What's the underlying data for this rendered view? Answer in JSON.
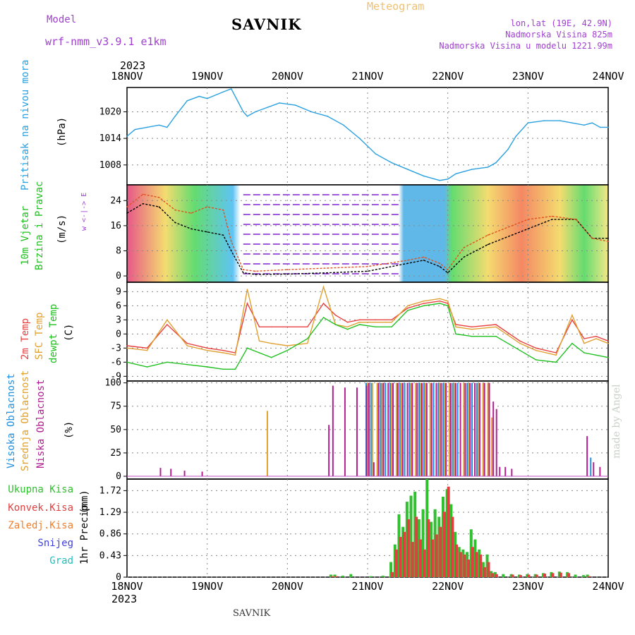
{
  "header": {
    "model_label": "Model",
    "model_name": "wrf-nmm_v3.9.1 e1km",
    "title": "SAVNIK",
    "subtitle": "Meteogram",
    "lonlat": "lon,lat (19E, 42.9N)",
    "altitude": "Nadmorska Visina 825m",
    "model_altitude": "Nadmorska Visina u modelu 1221.99m"
  },
  "footer": {
    "station": "SAVNIK",
    "credit": "made by Angel"
  },
  "colors": {
    "pressure": "#2aa0e0",
    "temp2m": "#e84040",
    "sfc_temp": "#e0a030",
    "dewpt": "#20c020",
    "high_cloud": "#2090e0",
    "mid_cloud": "#e0a030",
    "low_cloud": "#b02090",
    "total_precip": "#30c030",
    "conv_precip": "#e04040",
    "frozen_precip": "#f08030",
    "snow": "#4040e0",
    "hail": "#20c0c0",
    "wind_purple": "#8020d0"
  },
  "axis": {
    "year": "2023",
    "dates": [
      "18NOV",
      "19NOV",
      "20NOV",
      "21NOV",
      "22NOV",
      "23NOV",
      "24NOV"
    ]
  },
  "chart_data": [
    {
      "type": "line",
      "panel": "pressure",
      "ylabel": "Pritisak na nivou mora",
      "unit": "(hPa)",
      "yticks": [
        1008,
        1014,
        1020
      ],
      "ylim": [
        1003.5,
        1025.5
      ],
      "x_start": "18NOV",
      "x_end": "24NOV",
      "x": [
        0,
        0.1,
        0.25,
        0.4,
        0.5,
        0.6,
        0.75,
        0.9,
        1.0,
        1.2,
        1.3,
        1.45,
        1.5,
        1.6,
        1.75,
        1.9,
        2.1,
        2.3,
        2.5,
        2.7,
        2.9,
        3.1,
        3.3,
        3.5,
        3.7,
        3.9,
        4.0,
        4.1,
        4.3,
        4.5,
        4.6,
        4.75,
        4.85,
        5.0,
        5.2,
        5.4,
        5.55,
        5.7,
        5.8,
        5.9,
        6.0
      ],
      "series": [
        {
          "values": [
            1014.5,
            1016,
            1016.5,
            1017,
            1016.5,
            1019,
            1022.5,
            1023.5,
            1023,
            1024.5,
            1025.2,
            1020,
            1019,
            1020,
            1021,
            1022,
            1021.5,
            1020,
            1019,
            1017,
            1014,
            1010.5,
            1008.5,
            1007,
            1005.5,
            1004.5,
            1004.8,
            1006,
            1007,
            1007.5,
            1008.5,
            1011.5,
            1014.5,
            1017.5,
            1018,
            1018,
            1017.5,
            1017,
            1017.5,
            1016.5,
            1016.5
          ]
        }
      ]
    },
    {
      "type": "line",
      "panel": "wind",
      "ylabel": [
        "10m Vjetar",
        "Brzina i Pravac"
      ],
      "unit": "(m/s)",
      "compass": "w <-|-> E",
      "yticks": [
        0,
        8,
        16,
        24
      ],
      "ylim": [
        -2,
        29
      ],
      "x_start": "18NOV",
      "x_end": "24NOV",
      "x": [
        0,
        0.2,
        0.4,
        0.6,
        0.8,
        1.0,
        1.2,
        1.3,
        1.45,
        1.6,
        2.0,
        2.5,
        3.0,
        3.5,
        3.7,
        3.9,
        4.0,
        4.2,
        4.5,
        4.8,
        5.0,
        5.3,
        5.6,
        5.8,
        6.0
      ],
      "series": [
        {
          "name": "speed",
          "values": [
            20,
            23,
            22,
            17,
            15,
            14,
            13,
            8,
            1,
            0.5,
            0.6,
            1.0,
            1.5,
            4,
            5,
            3,
            1,
            6,
            10,
            13,
            15,
            18,
            18,
            12,
            12
          ]
        },
        {
          "name": "gust",
          "values": [
            22,
            26,
            25,
            21,
            20,
            22,
            21,
            11,
            2,
            1.5,
            2,
            2.5,
            3,
            5,
            6,
            4,
            2,
            9,
            13,
            16,
            18,
            19,
            18,
            12,
            11
          ]
        }
      ]
    },
    {
      "type": "line",
      "panel": "temperature",
      "ylabel": [
        "2m Temp",
        "SFC Temp",
        "dewpt Temp"
      ],
      "unit": "(C)",
      "yticks": [
        -9,
        -6,
        -3,
        0,
        3,
        6,
        9
      ],
      "ylim": [
        -10,
        11
      ],
      "x_start": "18NOV",
      "x_end": "24NOV",
      "x": [
        0,
        0.25,
        0.5,
        0.75,
        1.0,
        1.2,
        1.35,
        1.5,
        1.65,
        1.8,
        2.0,
        2.25,
        2.45,
        2.6,
        2.75,
        2.9,
        3.1,
        3.3,
        3.5,
        3.7,
        3.9,
        4.0,
        4.1,
        4.3,
        4.6,
        4.9,
        5.1,
        5.35,
        5.55,
        5.7,
        5.85,
        6.0
      ],
      "series": [
        {
          "name": "2m Temp",
          "values": [
            -2.5,
            -3,
            2,
            -2,
            -3,
            -3.5,
            -4,
            6.5,
            1.5,
            1.5,
            1.5,
            1.5,
            6.5,
            4,
            2.5,
            3,
            3,
            3,
            5.5,
            6.5,
            7,
            6.5,
            2,
            1.5,
            2,
            -1.5,
            -3,
            -4,
            3,
            -1,
            -0.5,
            -1.5
          ]
        },
        {
          "name": "SFC Temp",
          "values": [
            -3,
            -3.5,
            3,
            -2.5,
            -3.5,
            -4,
            -4.5,
            9.5,
            -1.5,
            -2,
            -2.5,
            -2,
            10,
            2,
            1.5,
            2.5,
            2.5,
            2.5,
            6,
            7,
            7.5,
            7,
            1.5,
            1,
            1.5,
            -2,
            -3.5,
            -4.5,
            4,
            -2,
            -1,
            -2
          ]
        },
        {
          "name": "dewpt Temp",
          "values": [
            -6,
            -7,
            -6,
            -6.5,
            -7,
            -7.5,
            -7.5,
            -3,
            -4,
            -5,
            -3.5,
            -1,
            3.5,
            2,
            1,
            2,
            1.5,
            1.5,
            5,
            6,
            6.5,
            6,
            0,
            -0.5,
            -0.5,
            -3.5,
            -5.5,
            -6,
            -2,
            -4,
            -4.5,
            -5
          ]
        }
      ]
    },
    {
      "type": "bar",
      "panel": "cloud",
      "ylabel": [
        "Visoka Oblacnost",
        "Srednja Oblacnost",
        "Niska Oblacnost"
      ],
      "unit": "(%)",
      "yticks": [
        0,
        25,
        50,
        75,
        100
      ],
      "ylim": [
        -3,
        102
      ],
      "x_start": "18NOV",
      "x_end": "24NOV",
      "x": [
        0.4,
        0.53,
        0.7,
        0.92,
        1.75,
        2.5,
        2.55,
        2.7,
        2.85,
        2.97,
        3.0,
        3.06,
        3.12,
        3.18,
        3.24,
        3.3,
        3.36,
        3.42,
        3.48,
        3.54,
        3.6,
        3.66,
        3.72,
        3.78,
        3.84,
        3.9,
        3.96,
        4.02,
        4.08,
        4.14,
        4.2,
        4.26,
        4.32,
        4.38,
        4.44,
        4.5,
        4.55,
        4.59,
        4.63,
        4.7,
        4.78,
        5.72,
        5.8,
        5.88
      ],
      "series": [
        {
          "name": "Visoka Oblacnost",
          "values": [
            0,
            0,
            0,
            0,
            0,
            0,
            0,
            0,
            0,
            0,
            100,
            100,
            0,
            100,
            100,
            100,
            0,
            100,
            100,
            100,
            0,
            100,
            100,
            0,
            100,
            100,
            100,
            0,
            100,
            100,
            0,
            100,
            100,
            100,
            0,
            0,
            0,
            0,
            0,
            0,
            0,
            0,
            20,
            0
          ]
        },
        {
          "name": "Srednja Oblacnost",
          "values": [
            0,
            0,
            0,
            0,
            70,
            0,
            0,
            0,
            0,
            0,
            100,
            100,
            100,
            100,
            0,
            100,
            100,
            100,
            0,
            100,
            100,
            100,
            100,
            100,
            0,
            100,
            100,
            100,
            100,
            0,
            100,
            100,
            0,
            100,
            100,
            100,
            63,
            0,
            0,
            0,
            0,
            0,
            0,
            0
          ]
        },
        {
          "name": "Niska Oblacnost",
          "values": [
            9,
            8,
            6,
            5,
            0,
            55,
            97,
            95,
            95,
            97,
            100,
            15,
            100,
            100,
            100,
            100,
            100,
            100,
            100,
            100,
            100,
            100,
            100,
            100,
            100,
            100,
            100,
            100,
            100,
            100,
            100,
            100,
            100,
            100,
            100,
            100,
            80,
            72,
            10,
            10,
            8,
            43,
            15,
            10
          ]
        }
      ]
    },
    {
      "type": "bar",
      "panel": "precipitation",
      "ylabel": "1hr Precip",
      "unit": "(mm)",
      "legend": [
        "Ukupna Kisa",
        "Konvek.Kisa",
        "Zaledj.Kisa",
        "Snijeg",
        "Grad"
      ],
      "yticks": [
        0,
        0.43,
        0.86,
        1.29,
        1.72
      ],
      "ylim": [
        0,
        1.95
      ],
      "x_start": "18NOV",
      "x_end": "24NOV",
      "x": [
        2.55,
        2.6,
        2.7,
        2.8,
        3.05,
        3.2,
        3.3,
        3.35,
        3.4,
        3.45,
        3.5,
        3.55,
        3.6,
        3.65,
        3.7,
        3.75,
        3.8,
        3.85,
        3.9,
        3.95,
        4.0,
        4.05,
        4.1,
        4.15,
        4.2,
        4.25,
        4.3,
        4.35,
        4.4,
        4.45,
        4.5,
        4.55,
        4.6,
        4.7,
        4.8,
        4.9,
        5.0,
        5.1,
        5.2,
        5.3,
        5.4,
        5.5,
        5.6,
        5.7,
        5.75
      ],
      "series": [
        {
          "name": "Ukupna Kisa",
          "values": [
            0.05,
            0.05,
            0.03,
            0.06,
            0.02,
            0.03,
            0.3,
            0.65,
            1.25,
            1.0,
            1.5,
            1.62,
            1.7,
            1.15,
            1.35,
            1.95,
            1.1,
            1.35,
            1.2,
            1.6,
            1.75,
            1.45,
            0.9,
            0.6,
            0.55,
            0.5,
            0.95,
            0.75,
            0.55,
            0.3,
            0.45,
            0.12,
            0.1,
            0.06,
            0.06,
            0.05,
            0.06,
            0.06,
            0.08,
            0.1,
            0.11,
            0.1,
            0.05,
            0.04,
            0.05
          ]
        },
        {
          "name": "Konvek.Kisa",
          "values": [
            0.02,
            0.02,
            0.0,
            0.0,
            0.0,
            0.0,
            0.1,
            0.55,
            0.8,
            0.9,
            1.15,
            0.7,
            1.2,
            0.75,
            0.55,
            1.15,
            0.75,
            0.85,
            1.0,
            1.3,
            1.8,
            1.2,
            0.65,
            0.5,
            0.45,
            0.35,
            0.6,
            0.5,
            0.45,
            0.2,
            0.3,
            0.08,
            0.06,
            0.0,
            0.05,
            0.04,
            0.05,
            0.05,
            0.07,
            0.08,
            0.09,
            0.08,
            0.0,
            0.0,
            0.02
          ]
        }
      ]
    }
  ]
}
